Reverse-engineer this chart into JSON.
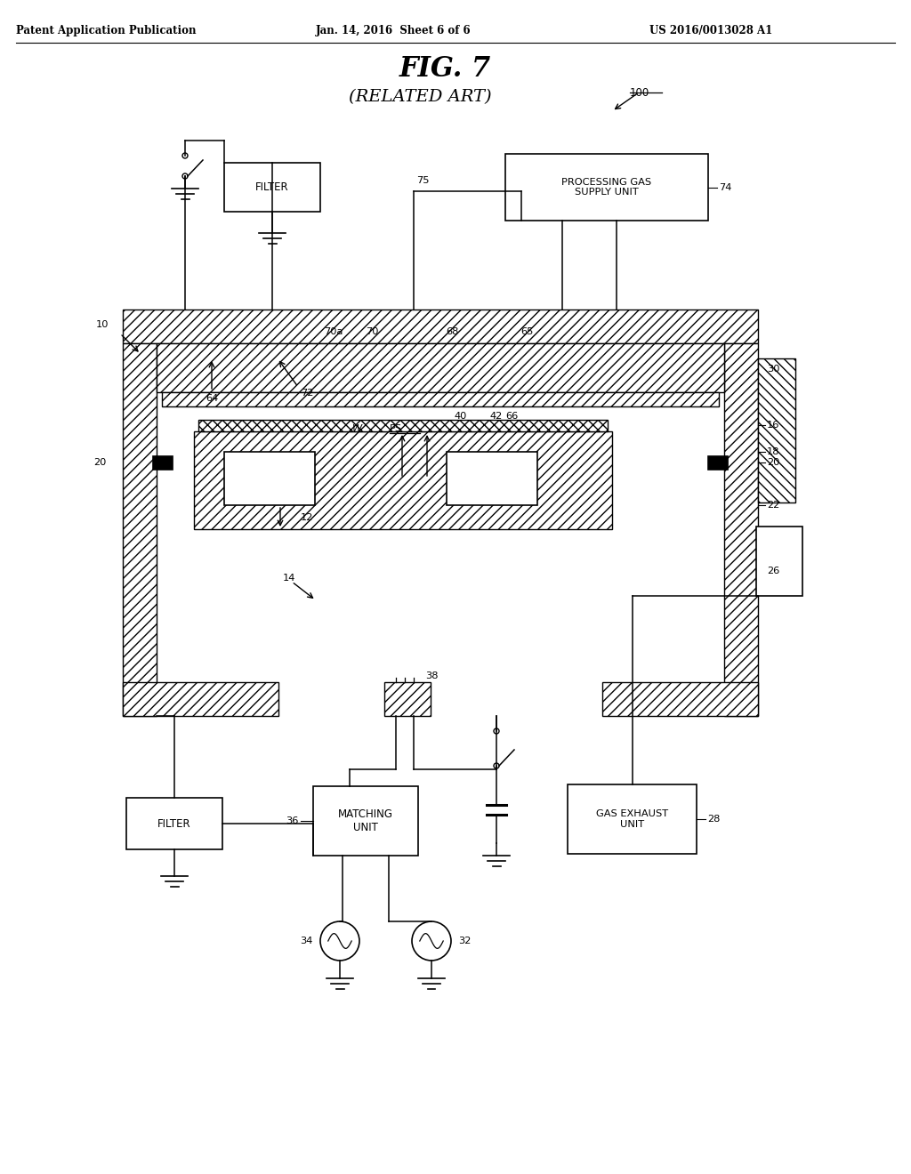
{
  "background_color": "#ffffff",
  "header_text": "Patent Application Publication",
  "header_date": "Jan. 14, 2016  Sheet 6 of 6",
  "header_patent": "US 2016/0013028 A1",
  "title": "FIG. 7",
  "subtitle": "(RELATED ART)",
  "ref_100": "100"
}
